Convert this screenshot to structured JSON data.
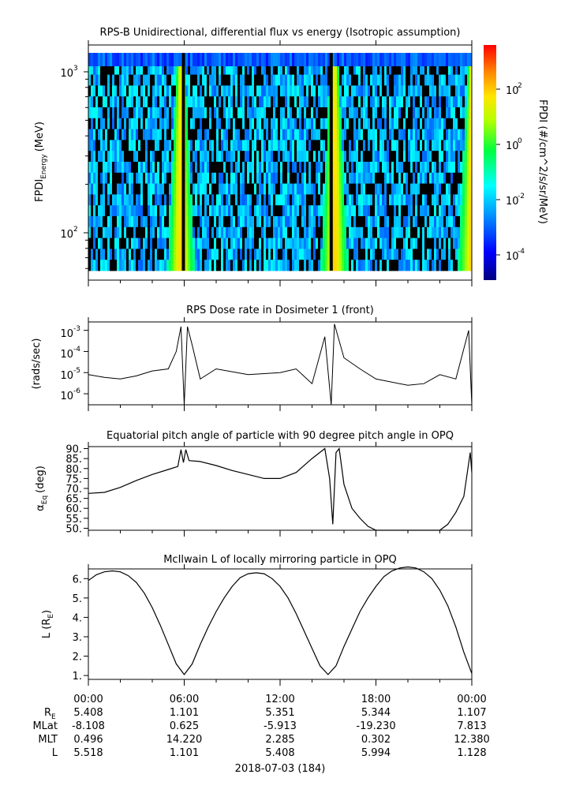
{
  "panels": {
    "spectrogram": {
      "title": "RPS-B  Unidirectional, differential flux vs energy (Isotropic assumption)",
      "ylabel_main": "FPDI",
      "ylabel_sub": "Energy",
      "ylabel_unit": "(MeV)",
      "ytick_base": "10",
      "ytick_exps": [
        "3",
        "2"
      ],
      "colorbar_label": "FPDI (#/cm^2/s/sr/MeV)",
      "colorbar_exps": [
        "2",
        "0",
        "-2",
        "-4"
      ]
    },
    "dose": {
      "title": "RPS  Dose rate in Dosimeter 1 (front)",
      "ylabel": "(rads/sec)",
      "ytick_base": "10",
      "ytick_exps": [
        "-3",
        "-4",
        "-5",
        "-6"
      ]
    },
    "pitch": {
      "title": "Equatorial pitch angle of particle with 90 degree pitch angle in OPQ",
      "ylabel_main": "α",
      "ylabel_sub": "Eq",
      "ylabel_unit": "(deg)",
      "yticks": [
        "90.",
        "85.",
        "80.",
        "75.",
        "70.",
        "65.",
        "60.",
        "55.",
        "50."
      ]
    },
    "lshell": {
      "title": "McIlwain L of locally mirroring particle in OPQ",
      "ylabel_main": "L (R",
      "ylabel_sub": "E",
      "ylabel_end": ")",
      "yticks": [
        "6.",
        "5.",
        "4.",
        "3.",
        "2.",
        "1."
      ]
    }
  },
  "xaxis": {
    "ticks": [
      "00:00",
      "06:00",
      "12:00",
      "18:00",
      "00:00"
    ],
    "rows": [
      {
        "label": "R",
        "sub": "E",
        "values": [
          "5.408",
          "1.101",
          "5.351",
          "5.344",
          "1.107"
        ]
      },
      {
        "label": "MLat",
        "sub": "",
        "values": [
          "-8.108",
          "0.625",
          "-5.913",
          "-19.230",
          "7.813"
        ]
      },
      {
        "label": "MLT",
        "sub": "",
        "values": [
          "0.496",
          "14.220",
          "2.285",
          "0.302",
          "12.380"
        ]
      },
      {
        "label": "L",
        "sub": "",
        "values": [
          "5.518",
          "1.101",
          "5.408",
          "5.994",
          "1.128"
        ]
      }
    ],
    "date": "2018-07-03 (184)"
  },
  "chart_data": [
    {
      "type": "heatmap",
      "title": "RPS-B  Unidirectional, differential flux vs energy (Isotropic assumption)",
      "x_unit": "hours",
      "x": [
        0,
        6,
        12,
        18,
        24
      ],
      "ylim": [
        55,
        1400
      ],
      "yscale": "log",
      "colorbar": {
        "scale": "log",
        "range": [
          1e-05,
          3000
        ],
        "ticks": [
          100,
          1,
          0.01,
          0.0001
        ]
      },
      "intensity_peaks_hours": [
        5.8,
        15.4,
        24
      ]
    },
    {
      "type": "line",
      "title": "RPS  Dose rate in Dosimeter 1 (front)",
      "ylabel": "(rads/sec)",
      "yscale": "log",
      "ylim": [
        3e-07,
        0.0025
      ],
      "x": [
        0,
        1,
        2,
        3,
        4,
        5,
        5.5,
        5.8,
        6,
        6.2,
        6.5,
        7,
        8,
        10,
        12,
        13,
        14,
        14.8,
        15.2,
        15.4,
        16,
        17,
        18,
        20,
        21,
        22,
        23,
        23.8,
        24
      ],
      "y": [
        8e-06,
        6e-06,
        5e-06,
        7e-06,
        1.2e-05,
        1.5e-05,
        0.0001,
        0.0015,
        1e-07,
        0.0015,
        0.0002,
        5e-06,
        1.5e-05,
        8e-06,
        1e-05,
        1.5e-05,
        3e-06,
        0.0005,
        1e-07,
        0.002,
        5e-05,
        1.5e-05,
        5e-06,
        2.5e-06,
        3e-06,
        8e-06,
        5e-06,
        0.001,
        1e-07
      ]
    },
    {
      "type": "line",
      "title": "Equatorial pitch angle of particle with 90 degree pitch angle in OPQ",
      "ylim": [
        49,
        91
      ],
      "x": [
        0,
        1,
        2,
        3,
        4,
        5,
        5.6,
        5.8,
        5.95,
        6.1,
        6.3,
        7,
        8,
        9,
        10,
        11,
        12,
        13,
        14,
        14.8,
        15.1,
        15.3,
        15.5,
        15.7,
        16,
        16.5,
        17,
        17.5,
        18,
        22,
        22.5,
        23,
        23.5,
        23.9,
        24
      ],
      "y": [
        67.5,
        68,
        70.5,
        74,
        77,
        79.5,
        81,
        89.5,
        83,
        89.5,
        84,
        83.5,
        81.5,
        79,
        77,
        75,
        75,
        78,
        85,
        90,
        75,
        52,
        88,
        90,
        72,
        60,
        55,
        51,
        49,
        49,
        52,
        58,
        66,
        88,
        78
      ]
    },
    {
      "type": "line",
      "title": "McIlwain L of locally mirroring particle in OPQ",
      "ylim": [
        0.8,
        6.5
      ],
      "x": [
        0,
        0.5,
        1,
        1.5,
        2,
        2.5,
        3,
        3.5,
        4,
        4.5,
        5,
        5.5,
        6,
        6.5,
        7,
        7.5,
        8,
        8.5,
        9,
        9.5,
        10,
        10.5,
        11,
        11.5,
        12,
        12.5,
        13,
        13.5,
        14,
        14.5,
        15,
        15.5,
        16,
        16.5,
        17,
        17.5,
        18,
        18.5,
        19,
        19.5,
        20,
        20.5,
        21,
        21.5,
        22,
        22.5,
        23,
        23.5,
        24
      ],
      "y": [
        5.9,
        6.2,
        6.35,
        6.4,
        6.35,
        6.15,
        5.8,
        5.25,
        4.5,
        3.6,
        2.6,
        1.6,
        1.05,
        1.6,
        2.6,
        3.5,
        4.3,
        5.0,
        5.6,
        6.05,
        6.25,
        6.3,
        6.25,
        6.0,
        5.6,
        5.0,
        4.2,
        3.3,
        2.4,
        1.5,
        1.05,
        1.5,
        2.5,
        3.4,
        4.3,
        5.0,
        5.6,
        6.1,
        6.4,
        6.55,
        6.6,
        6.55,
        6.35,
        6.0,
        5.4,
        4.6,
        3.5,
        2.2,
        1.1
      ]
    }
  ]
}
